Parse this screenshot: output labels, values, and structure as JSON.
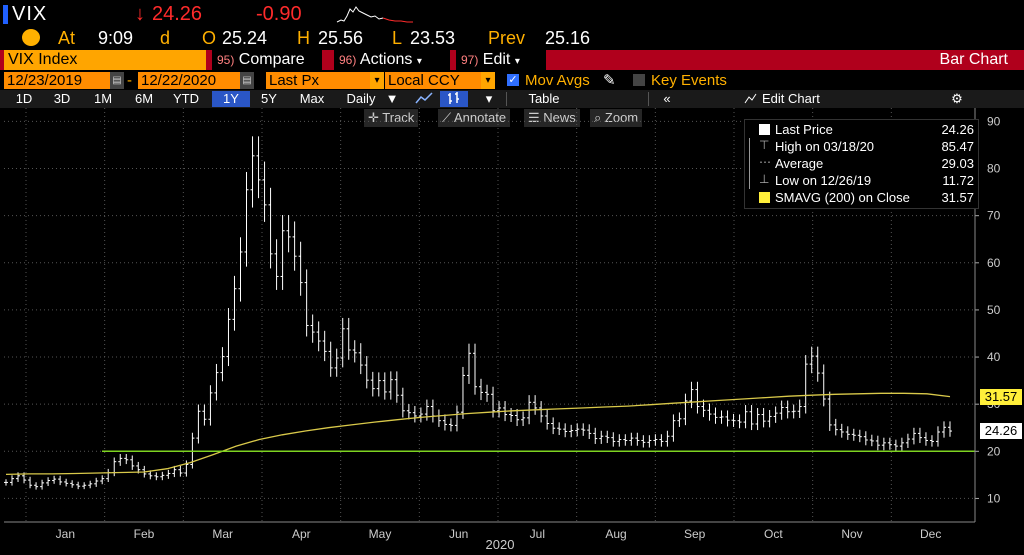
{
  "ticker": {
    "symbol": "VIX",
    "arrow": "↓",
    "price": "24.26",
    "change": "-0.90"
  },
  "quote": {
    "at_label": "At",
    "time": "9:09",
    "d": "d",
    "o_label": "O",
    "open": "25.24",
    "h_label": "H",
    "high": "25.56",
    "l_label": "L",
    "low": "23.53",
    "prev_label": "Prev",
    "prev": "25.16"
  },
  "toolbar": {
    "index": "VIX Index",
    "compare_num": "95)",
    "compare": "Compare",
    "actions_num": "96)",
    "actions": "Actions",
    "edit_num": "97)",
    "edit": "Edit",
    "title": "Bar Chart"
  },
  "settings": {
    "start_date": "12/23/2019",
    "dash": "-",
    "end_date": "12/22/2020",
    "field": "Last Px",
    "currency": "Local CCY",
    "mov_avgs": "Mov Avgs",
    "key_events": "Key Events"
  },
  "periods": [
    "1D",
    "3D",
    "1M",
    "6M",
    "YTD",
    "1Y",
    "5Y",
    "Max"
  ],
  "selected_period": "1Y",
  "frequency": "Daily",
  "table_label": "Table",
  "edit_chart": "Edit Chart",
  "tools": {
    "track": "Track",
    "annotate": "Annotate",
    "news": "News",
    "zoom": "Zoom"
  },
  "legend": {
    "last_label": "Last Price",
    "last": "24.26",
    "high_label": "High on 03/18/20",
    "high": "85.47",
    "avg_label": "Average",
    "avg": "29.03",
    "low_label": "Low on 12/26/19",
    "low": "11.72",
    "sma_label": "SMAVG (200)  on Close",
    "sma": "31.57"
  },
  "tags": {
    "sma": "31.57",
    "last": "24.26"
  },
  "colors": {
    "accent": "#ffa500",
    "brand_red": "#b0001c",
    "bars": "#ffffff",
    "sma": "#d9c94a",
    "hline": "#7ed321",
    "down": "#ff2b2b"
  },
  "chart_data": {
    "type": "bar",
    "y_ticks": [
      10,
      20,
      30,
      40,
      50,
      60,
      70,
      80,
      90
    ],
    "ylim": [
      5,
      92
    ],
    "months": [
      "Jan",
      "Feb",
      "Mar",
      "Apr",
      "May",
      "Jun",
      "Jul",
      "Aug",
      "Sep",
      "Oct",
      "Nov",
      "Dec"
    ],
    "year_label": "2020",
    "horizontal_line": 20,
    "series": [
      {
        "name": "Last Price",
        "values": [
          13.4,
          14.2,
          14.8,
          13.9,
          12.8,
          12.5,
          13.3,
          13.8,
          14.1,
          13.5,
          13.2,
          12.9,
          12.6,
          12.8,
          13.1,
          13.7,
          14.2,
          15.5,
          17.8,
          18.5,
          18.2,
          16.9,
          16.1,
          15.2,
          14.8,
          14.6,
          14.9,
          15.3,
          16.1,
          15.4,
          17.2,
          22.8,
          28.5,
          26.8,
          32.4,
          36.7,
          40.1,
          48.0,
          54.5,
          62.3,
          75.5,
          82.7,
          77.6,
          72.3,
          61.9,
          57.1,
          66.8,
          65.5,
          61.4,
          55.8,
          46.7,
          45.3,
          43.4,
          41.2,
          37.7,
          39.8,
          46.0,
          41.5,
          40.9,
          38.3,
          35.1,
          33.3,
          35.0,
          32.6,
          35.2,
          31.9,
          28.6,
          28.2,
          27.5,
          27.9,
          29.5,
          27.5,
          26.5,
          25.7,
          25.5,
          28.3,
          36.1,
          40.8,
          33.7,
          32.5,
          32.1,
          28.6,
          29.2,
          27.8,
          27.6,
          26.7,
          27.1,
          30.4,
          29.2,
          27.5,
          25.9,
          24.9,
          24.7,
          24.2,
          24.4,
          24.7,
          24.5,
          23.8,
          22.7,
          23.2,
          22.9,
          22.1,
          22.5,
          22.3,
          22.8,
          22.3,
          21.9,
          22.3,
          22.5,
          22.1,
          23.2,
          26.5,
          26.9,
          30.7,
          33.1,
          29.5,
          28.7,
          27.9,
          27.2,
          27.3,
          26.6,
          26.5,
          26.2,
          28.4,
          25.8,
          27.8,
          26.4,
          27.4,
          28.1,
          29.3,
          28.4,
          28.5,
          29.5,
          38.5,
          40.2,
          36.6,
          31.1,
          25.6,
          24.6,
          24.1,
          23.6,
          23.4,
          23.1,
          22.4,
          22.2,
          21.3,
          21.8,
          21.4,
          21.1,
          21.8,
          22.6,
          23.8,
          22.9,
          22.3,
          22.1,
          24.1,
          25.1,
          24.3
        ]
      }
    ],
    "sma": {
      "name": "SMAVG (200)",
      "values": [
        15.1,
        15.2,
        15.2,
        15.3,
        15.4,
        15.5,
        15.6,
        16.3,
        17.6,
        19.3,
        21.1,
        22.5,
        23.5,
        24.3,
        25.0,
        25.6,
        26.2,
        26.7,
        27.2,
        27.6,
        28.0,
        28.3,
        28.6,
        28.8,
        29.0,
        29.2,
        29.4,
        29.6,
        29.9,
        30.2,
        30.5,
        30.8,
        31.1,
        31.4,
        31.7,
        31.9,
        32.1,
        32.2,
        32.3,
        32.3,
        32.2,
        31.6
      ]
    },
    "legend_placement": "top-right"
  }
}
